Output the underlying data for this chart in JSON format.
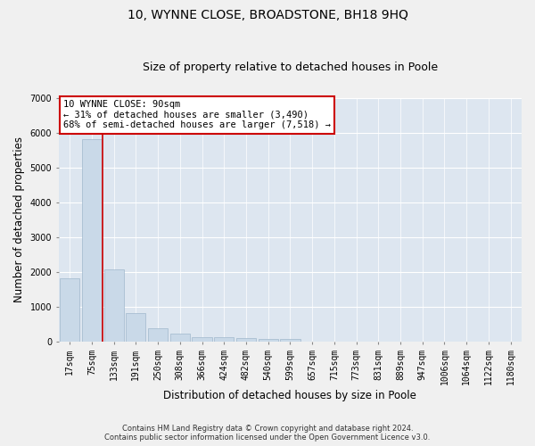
{
  "title": "10, WYNNE CLOSE, BROADSTONE, BH18 9HQ",
  "subtitle": "Size of property relative to detached houses in Poole",
  "xlabel": "Distribution of detached houses by size in Poole",
  "ylabel": "Number of detached properties",
  "bar_labels": [
    "17sqm",
    "75sqm",
    "133sqm",
    "191sqm",
    "250sqm",
    "308sqm",
    "366sqm",
    "424sqm",
    "482sqm",
    "540sqm",
    "599sqm",
    "657sqm",
    "715sqm",
    "773sqm",
    "831sqm",
    "889sqm",
    "947sqm",
    "1006sqm",
    "1064sqm",
    "1122sqm",
    "1180sqm"
  ],
  "bar_values": [
    1800,
    5800,
    2070,
    810,
    380,
    220,
    130,
    120,
    90,
    70,
    80,
    0,
    0,
    0,
    0,
    0,
    0,
    0,
    0,
    0,
    0
  ],
  "bar_color": "#c9d9e8",
  "bar_edgecolor": "#a0b8cc",
  "vline_x": 1.5,
  "vline_color": "#cc0000",
  "annotation_text": "10 WYNNE CLOSE: 90sqm\n← 31% of detached houses are smaller (3,490)\n68% of semi-detached houses are larger (7,518) →",
  "annotation_box_color": "#ffffff",
  "annotation_box_edgecolor": "#cc0000",
  "ylim": [
    0,
    7000
  ],
  "yticks": [
    0,
    1000,
    2000,
    3000,
    4000,
    5000,
    6000,
    7000
  ],
  "background_color": "#dde6f0",
  "fig_background_color": "#f0f0f0",
  "grid_color": "#ffffff",
  "footer1": "Contains HM Land Registry data © Crown copyright and database right 2024.",
  "footer2": "Contains public sector information licensed under the Open Government Licence v3.0.",
  "title_fontsize": 10,
  "subtitle_fontsize": 9,
  "xlabel_fontsize": 8.5,
  "ylabel_fontsize": 8.5,
  "tick_fontsize": 7,
  "annot_fontsize": 7.5,
  "footer_fontsize": 6
}
